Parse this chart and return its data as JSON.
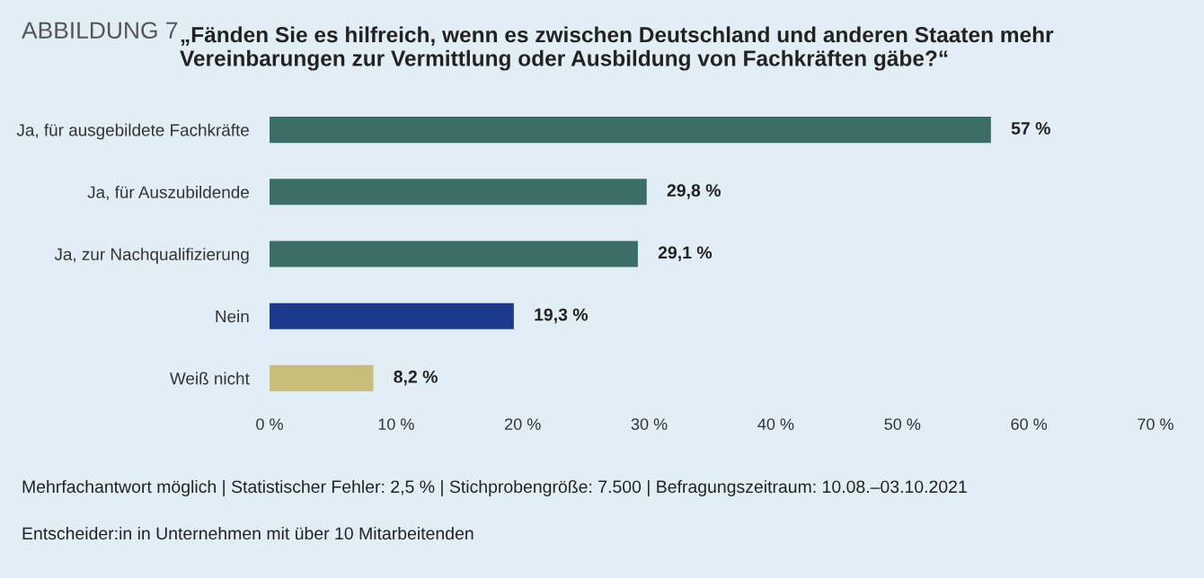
{
  "chart_data": {
    "type": "bar",
    "orientation": "horizontal",
    "title": "ABBILDUNG 7",
    "subtitle": "„Fänden Sie es hilfreich, wenn es zwischen Deutschland und anderen Staaten mehr Vereinbarungen zur Vermittlung oder Ausbildung von Fachkräften gäbe?“",
    "categories": [
      "Ja, für ausgebildete Fachkräfte",
      "Ja, für Auszubildende",
      "Ja, zur Nachqualifizierung",
      "Nein",
      "Weiß nicht"
    ],
    "values": [
      57,
      29.8,
      29.1,
      19.3,
      8.2
    ],
    "colors": [
      "#3b6e66",
      "#3b6e66",
      "#3b6e66",
      "#1b3a8c",
      "#c9bd7a"
    ],
    "value_labels": [
      "57 %",
      "29,8 %",
      "29,1 %",
      "19,3 %",
      "8,2 %"
    ],
    "xlim": [
      0,
      70
    ],
    "xticks": [
      {
        "value": 0,
        "label": "0 %"
      },
      {
        "value": 10,
        "label": "10 %"
      },
      {
        "value": 20,
        "label": "20 %"
      },
      {
        "value": 30,
        "label": "30 %"
      },
      {
        "value": 40,
        "label": "40 %"
      },
      {
        "value": 50,
        "label": "50 %"
      },
      {
        "value": 60,
        "label": "60 %"
      },
      {
        "value": 70,
        "label": "70 %"
      }
    ],
    "grid": false,
    "legend": false,
    "annotations": [
      "Mehrfachantwort möglich | Statistischer Fehler: 2,5 % | Stichprobengröße: 7.500 | Befragungszeitraum: 10.08.–03.10.2021",
      "Entscheider:in in Unternehmen mit über 10 Mitarbeitenden"
    ]
  }
}
